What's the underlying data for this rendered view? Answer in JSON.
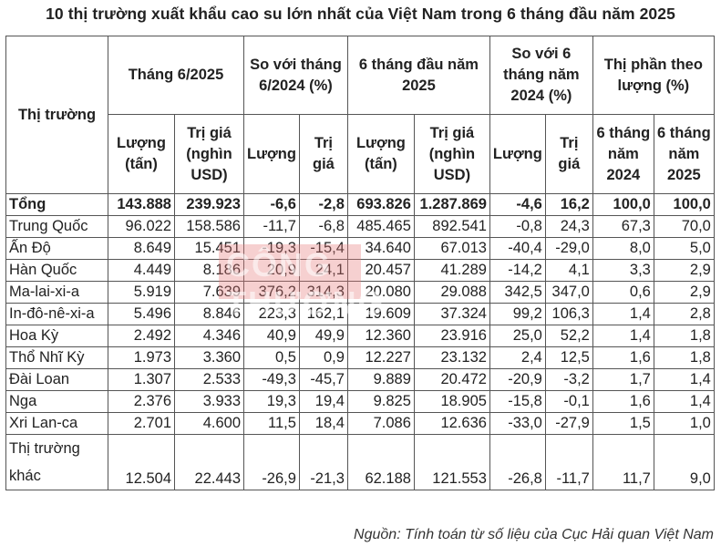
{
  "title": "10 thị trường xuất khẩu cao su lớn nhất của Việt Nam trong 6 tháng đầu năm 2025",
  "table": {
    "header": {
      "market": "Thị trường",
      "group1": "Tháng 6/2025",
      "group2": "So với tháng 6/2024 (%)",
      "group3": "6 tháng đầu năm 2025",
      "group4": "So với 6 tháng năm 2024 (%)",
      "group5": "Thị phần theo lượng (%)",
      "sub": [
        "Lượng (tấn)",
        "Trị giá (nghìn USD)",
        "Lượng",
        "Trị giá",
        "Lượng (tấn)",
        "Trị giá (nghìn USD)",
        "Lượng",
        "Trị giá",
        "6 tháng năm 2024",
        "6 tháng năm 2025"
      ]
    },
    "rows": [
      [
        "Tổng",
        "143.888",
        "239.923",
        "-6,6",
        "-2,8",
        "693.826",
        "1.287.869",
        "-4,6",
        "16,2",
        "100,0",
        "100,0"
      ],
      [
        "Trung Quốc",
        "96.022",
        "158.586",
        "-11,7",
        "-6,8",
        "485.465",
        "892.541",
        "-0,8",
        "24,3",
        "67,3",
        "70,0"
      ],
      [
        "Ấn Độ",
        "8.649",
        "15.451",
        "-19,3",
        "-15,4",
        "34.640",
        "67.013",
        "-40,4",
        "-29,0",
        "8,0",
        "5,0"
      ],
      [
        "Hàn Quốc",
        "4.449",
        "8.186",
        "20,9",
        "24,1",
        "20.457",
        "41.289",
        "-14,2",
        "4,1",
        "3,3",
        "2,9"
      ],
      [
        "Ma-lai-xi-a",
        "5.919",
        "7.639",
        "376,2",
        "314,3",
        "20.080",
        "29.088",
        "342,5",
        "347,0",
        "0,6",
        "2,9"
      ],
      [
        "In-đô-nê-xi-a",
        "5.496",
        "8.846",
        "223,3",
        "162,1",
        "19.609",
        "37.324",
        "99,2",
        "106,3",
        "1,4",
        "2,8"
      ],
      [
        "Hoa Kỳ",
        "2.492",
        "4.346",
        "40,9",
        "49,9",
        "12.360",
        "23.916",
        "25,0",
        "52,2",
        "1,4",
        "1,8"
      ],
      [
        "Thổ Nhĩ Kỳ",
        "1.973",
        "3.360",
        "0,5",
        "0,9",
        "12.227",
        "23.132",
        "2,4",
        "12,5",
        "1,6",
        "1,8"
      ],
      [
        "Đài Loan",
        "1.307",
        "2.533",
        "-49,3",
        "-45,7",
        "9.889",
        "20.472",
        "-20,9",
        "-3,2",
        "1,7",
        "1,4"
      ],
      [
        "Nga",
        "2.376",
        "3.933",
        "19,3",
        "19,4",
        "9.825",
        "18.905",
        "-15,8",
        "-0,1",
        "1,6",
        "1,4"
      ],
      [
        "Xri Lan-ca",
        "2.701",
        "4.600",
        "11,5",
        "18,4",
        "7.086",
        "12.636",
        "-33,0",
        "-27,9",
        "1,5",
        "1,0"
      ],
      [
        "Thị trường khác",
        "12.504",
        "22.443",
        "-26,9",
        "-21,3",
        "62.188",
        "121.553",
        "-26,8",
        "-11,7",
        "11,7",
        "9,0"
      ]
    ]
  },
  "watermark": "CÔNG THƯƠNG",
  "source": "Nguồn: Tính toán từ số liệu của Cục Hải quan Việt Nam"
}
